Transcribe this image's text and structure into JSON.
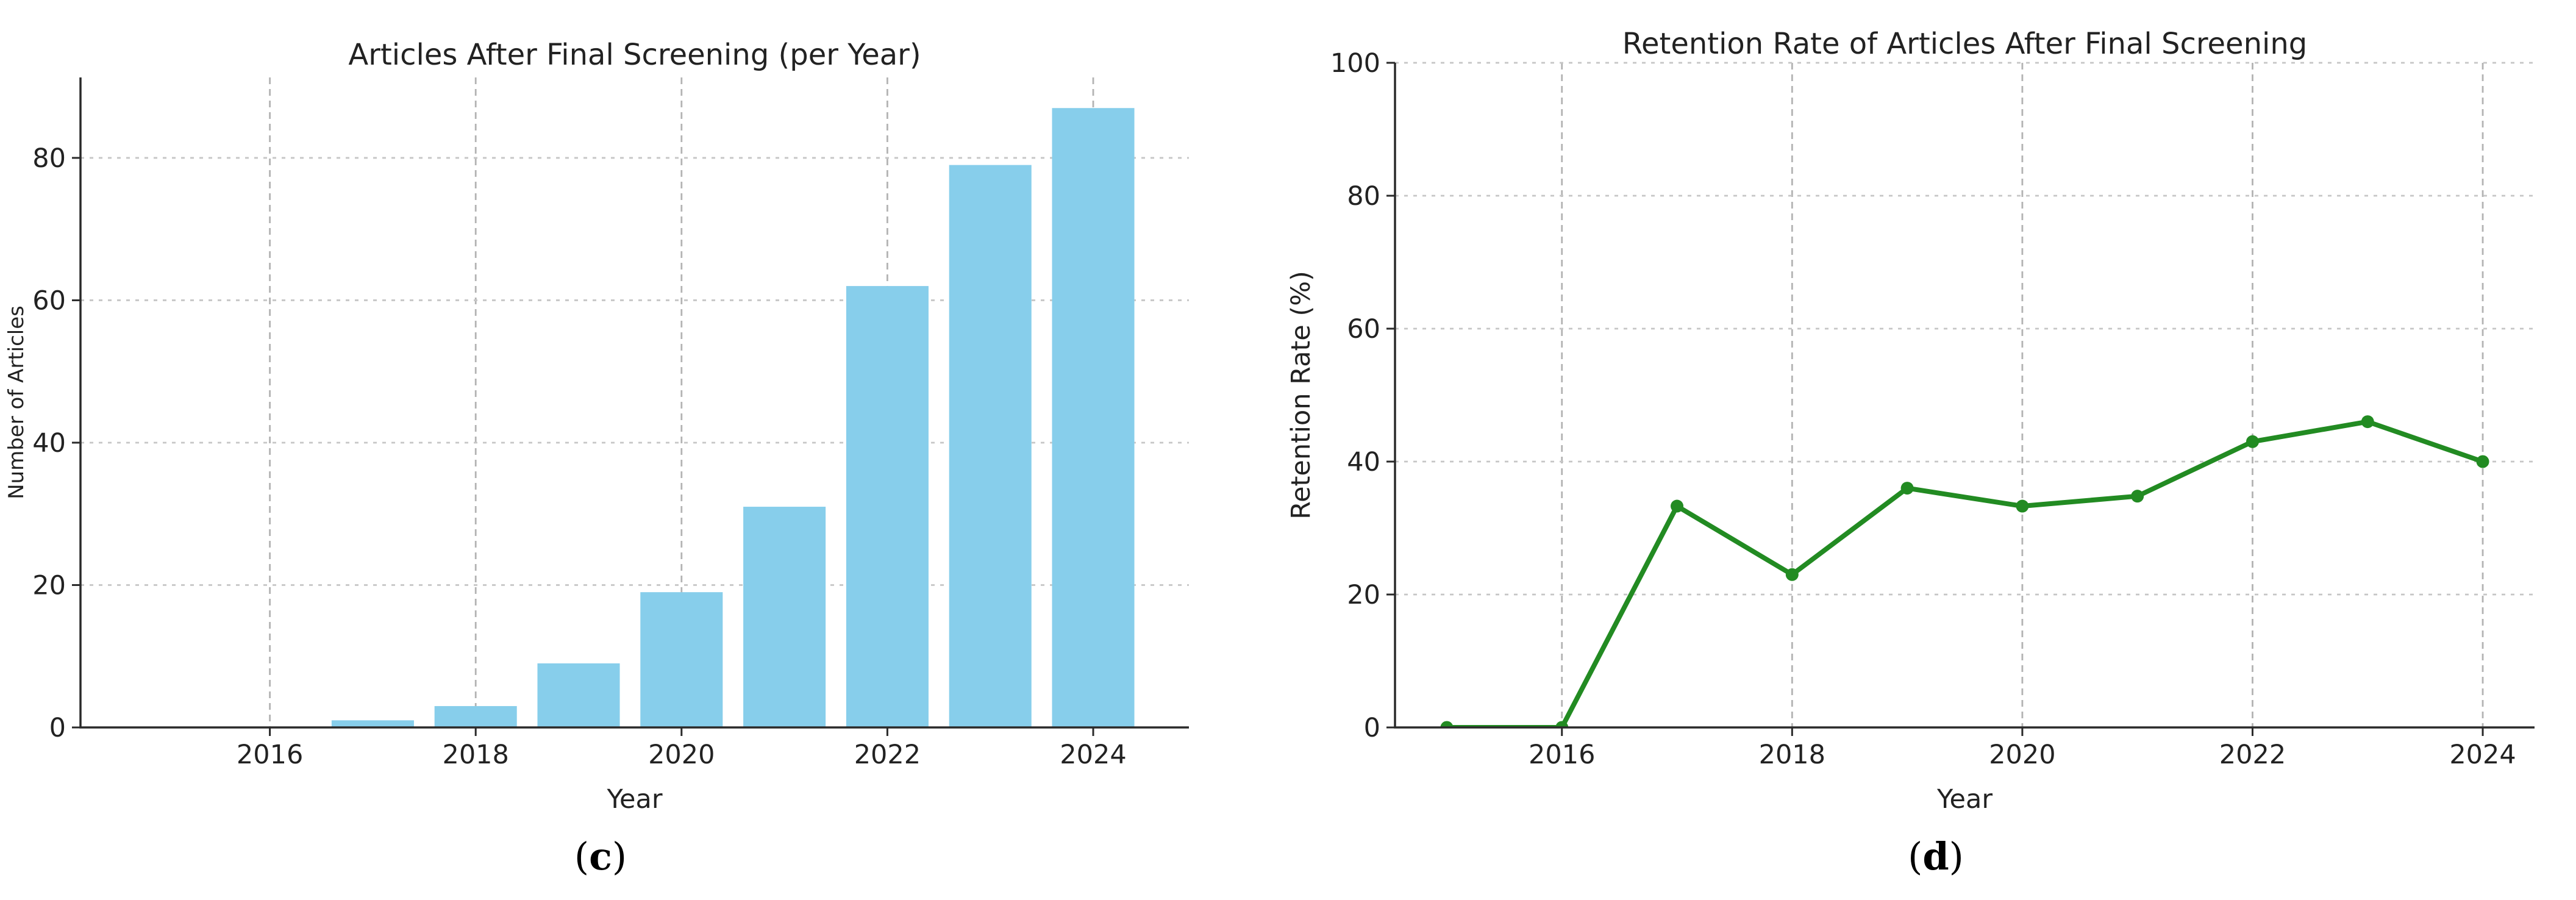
{
  "page": {
    "background": "#ffffff"
  },
  "figure": {
    "captions": {
      "open": "(",
      "close": ")",
      "c": "c",
      "d": "d"
    }
  },
  "style": {
    "axis_color": "#2a2a2a",
    "text_color": "#222222",
    "grid_color_horizontal": "#c6c6c6",
    "grid_color_vertical": "#b3b3b3",
    "bar_color": "#87CEEB",
    "line_color": "#228B22"
  },
  "chart_data": [
    {
      "id": "articles-after-final-screening",
      "type": "bar",
      "title": "Articles After Final Screening (per Year)",
      "xlabel": "Year",
      "ylabel": "Number of Articles",
      "categories": [
        2015,
        2016,
        2017,
        2018,
        2019,
        2020,
        2021,
        2022,
        2023,
        2024
      ],
      "values": [
        0,
        0,
        1,
        3,
        9,
        19,
        31,
        62,
        79,
        87
      ],
      "bar_color": "#87CEEB",
      "xticks": [
        2016,
        2018,
        2020,
        2022,
        2024
      ],
      "yticks": [
        0,
        20,
        40,
        60,
        80
      ],
      "xlim": [
        2014.16,
        2024.93
      ],
      "ylim": [
        0,
        91.3
      ],
      "grid": true,
      "legend_position": "none"
    },
    {
      "id": "retention-rate",
      "type": "line",
      "title": "Retention Rate of Articles After Final Screening",
      "xlabel": "Year",
      "ylabel": "Retention Rate (%)",
      "x": [
        2015,
        2016,
        2017,
        2018,
        2019,
        2020,
        2021,
        2022,
        2023,
        2024
      ],
      "values": [
        0,
        0,
        33.3,
        23,
        36,
        33.3,
        34.8,
        43,
        46,
        40
      ],
      "line_color": "#228B22",
      "marker": "circle",
      "xticks": [
        2016,
        2018,
        2020,
        2022,
        2024
      ],
      "yticks": [
        0,
        20,
        40,
        60,
        80,
        100
      ],
      "xlim": [
        2014.55,
        2024.45
      ],
      "ylim": [
        0,
        100
      ],
      "grid": true,
      "legend_position": "none"
    }
  ]
}
